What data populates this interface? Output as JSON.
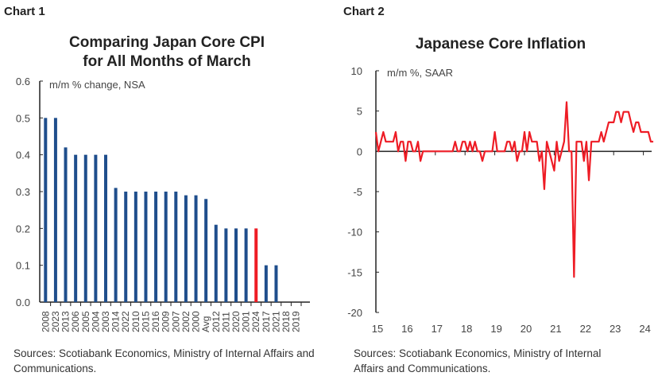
{
  "chart_data": [
    {
      "label": "Chart 1",
      "type": "bar",
      "title": "Comparing Japan Core CPI for All Months of March",
      "title_lines": [
        "Comparing Japan Core CPI",
        "for All Months of March"
      ],
      "unit_label": "m/m % change, NSA",
      "categories": [
        "2008",
        "2023",
        "2013",
        "2006",
        "2005",
        "2004",
        "2003",
        "2014",
        "2022",
        "2010",
        "2015",
        "2016",
        "2009",
        "2007",
        "2002",
        "2000",
        "Avg",
        "2012",
        "2011",
        "2020",
        "2001",
        "2024",
        "2017",
        "2021",
        "2018",
        "2019"
      ],
      "values": [
        0.5,
        0.5,
        0.42,
        0.4,
        0.4,
        0.4,
        0.4,
        0.31,
        0.3,
        0.3,
        0.3,
        0.3,
        0.3,
        0.3,
        0.29,
        0.29,
        0.28,
        0.21,
        0.2,
        0.2,
        0.2,
        0.2,
        0.1,
        0.1,
        0,
        0
      ],
      "highlight": "2024",
      "ylim": [
        0,
        0.6
      ],
      "yticks": [
        "0.0",
        "0.1",
        "0.2",
        "0.3",
        "0.4",
        "0.5",
        "0.6"
      ],
      "colors": {
        "bar": "#1f4e8c",
        "highlight": "#ee1c25"
      },
      "source": "Sources: Scotiabank Economics, Ministry of Internal Affairs and Communications."
    },
    {
      "label": "Chart 2",
      "type": "line",
      "title": "Japanese Core Inflation",
      "unit_label": "m/m %, SAAR",
      "x_start": "2015-01",
      "frequency": "monthly",
      "values": [
        2.4,
        0,
        1.2,
        2.4,
        1.2,
        1.2,
        1.2,
        1.2,
        2.4,
        0,
        1.2,
        1.2,
        -1.2,
        1.2,
        1.2,
        0,
        0,
        1.2,
        -1.2,
        0,
        0,
        0,
        0,
        0,
        0,
        0,
        0,
        0,
        0,
        0,
        0,
        0,
        1.2,
        0,
        0,
        1.2,
        1.2,
        0,
        1.2,
        0,
        1.2,
        0,
        0,
        -1.2,
        0,
        0,
        0,
        0,
        2.4,
        0,
        0,
        0,
        0,
        1.2,
        1.2,
        0,
        1.2,
        -1.2,
        0,
        0,
        2.4,
        0,
        2.4,
        1.2,
        1.2,
        1.2,
        -1.2,
        0,
        -4.7,
        1.2,
        0,
        -1.2,
        -2.4,
        1.2,
        -1.2,
        0,
        1.2,
        6.1,
        0,
        0,
        -15.6,
        1.2,
        1.2,
        1.2,
        -1.2,
        1.2,
        -3.6,
        1.2,
        1.2,
        1.2,
        1.2,
        2.4,
        1.2,
        2.4,
        3.6,
        3.6,
        3.6,
        4.9,
        4.9,
        3.6,
        4.9,
        4.9,
        4.9,
        3.6,
        2.4,
        3.6,
        3.6,
        2.4,
        2.4,
        2.4,
        2.4,
        1.2,
        1.2
      ],
      "xticks": [
        "15",
        "16",
        "17",
        "18",
        "19",
        "20",
        "21",
        "22",
        "23",
        "24"
      ],
      "ylim": [
        -20,
        10
      ],
      "yticks": [
        "-20",
        "-15",
        "-10",
        "-5",
        "0",
        "5",
        "10"
      ],
      "colors": {
        "line": "#ee1c25"
      },
      "source": "Sources: Scotiabank Economics, Ministry of Internal Affairs and Communications."
    }
  ]
}
